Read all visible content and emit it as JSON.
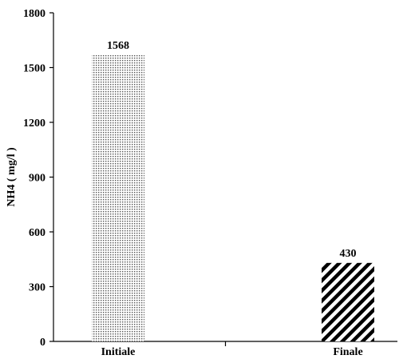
{
  "chart_data": {
    "type": "bar",
    "title": "",
    "xlabel": "",
    "ylabel": "NH4 ( mg/l )",
    "ylim": [
      0,
      1800
    ],
    "yticks": [
      0,
      300,
      600,
      900,
      1200,
      1500,
      1800
    ],
    "categories": [
      "Initiale",
      "Finale"
    ],
    "values": [
      1568,
      430
    ],
    "data_labels": [
      "1568",
      "430"
    ],
    "bar_patterns": [
      "dots",
      "diagonal-stripes"
    ],
    "grid": false,
    "legend": "none"
  }
}
